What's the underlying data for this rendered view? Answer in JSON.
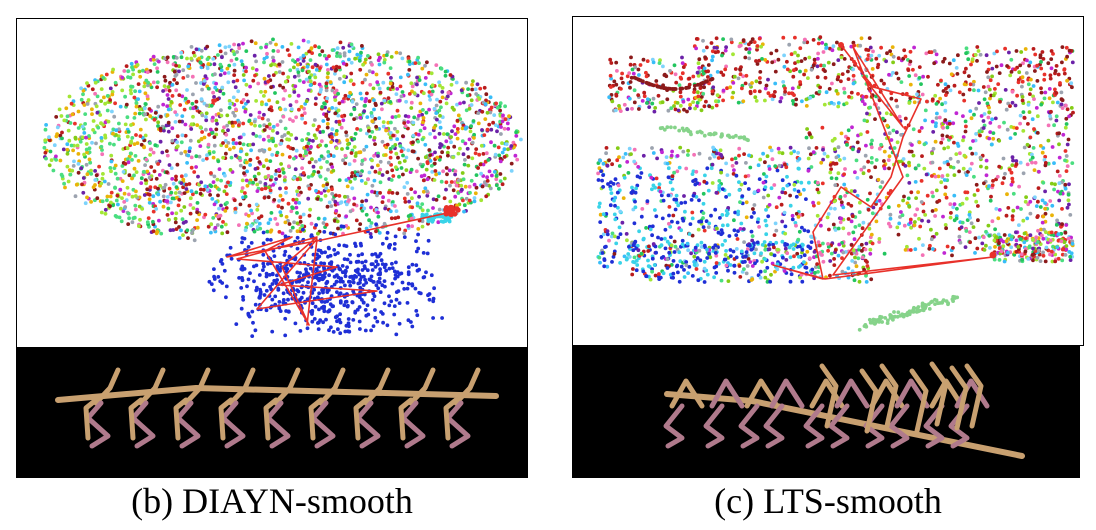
{
  "figure": {
    "panels": [
      {
        "id": "b",
        "caption": "(b) DIAYN-smooth"
      },
      {
        "id": "c",
        "caption": "(c) LTS-smooth"
      }
    ]
  },
  "colors": {
    "trajectory": "#e8312a",
    "blue_cluster": "#1f2fd6",
    "cyan": "#39d3e8",
    "limb_tan": "#c8a070",
    "limb_pink": "#b07a8c",
    "strip_bg": "#000000"
  },
  "icons": {
    "scatter_points": "tsne-scatter",
    "trajectory": "red-path-line",
    "agent": "stick-figure-crawler"
  }
}
